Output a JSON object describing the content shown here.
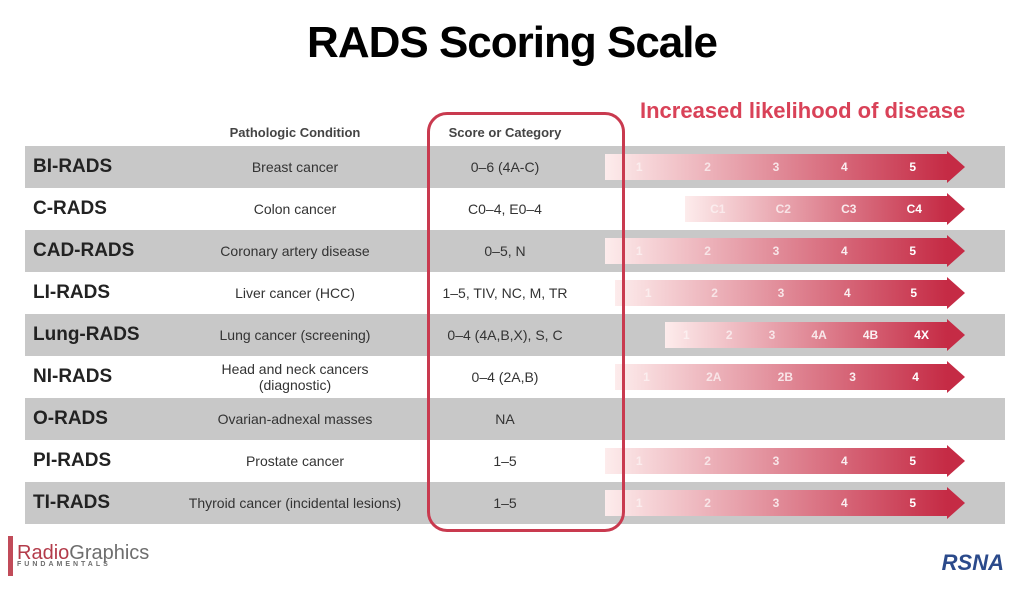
{
  "title": "RADS Scoring Scale",
  "increased_label": "Increased likelihood of disease",
  "headers": {
    "condition": "Pathologic Condition",
    "score": "Score or Category"
  },
  "gradient_light": "#fdecec",
  "gradient_dark": "#c52b45",
  "rows": [
    {
      "name": "BI-RADS",
      "condition": "Breast cancer",
      "score": "0–6 (4A-C)",
      "shaded": true,
      "arrow_start": 0,
      "ticks": [
        "1",
        "2",
        "3",
        "4",
        "5"
      ]
    },
    {
      "name": "C-RADS",
      "condition": "Colon cancer",
      "score": "C0–4, E0–4",
      "shaded": false,
      "arrow_start": 80,
      "ticks": [
        "C1",
        "C2",
        "C3",
        "C4"
      ]
    },
    {
      "name": "CAD-RADS",
      "condition": "Coronary artery disease",
      "score": "0–5, N",
      "shaded": true,
      "arrow_start": 0,
      "ticks": [
        "1",
        "2",
        "3",
        "4",
        "5"
      ]
    },
    {
      "name": "LI-RADS",
      "condition": "Liver cancer (HCC)",
      "score": "1–5, TIV, NC, M, TR",
      "shaded": false,
      "arrow_start": 10,
      "ticks": [
        "1",
        "2",
        "3",
        "4",
        "5"
      ]
    },
    {
      "name": "Lung-RADS",
      "condition": "Lung cancer (screening)",
      "score": "0–4 (4A,B,X), S, C",
      "shaded": true,
      "arrow_start": 60,
      "ticks": [
        "1",
        "2",
        "3",
        "4A",
        "4B",
        "4X"
      ]
    },
    {
      "name": "NI-RADS",
      "condition": "Head and neck cancers (diagnostic)",
      "score": "0–4 (2A,B)",
      "shaded": false,
      "arrow_start": 10,
      "ticks": [
        "1",
        "2A",
        "2B",
        "3",
        "4"
      ]
    },
    {
      "name": "O-RADS",
      "condition": "Ovarian-adnexal masses",
      "score": "NA",
      "shaded": true,
      "arrow_start": null,
      "ticks": []
    },
    {
      "name": "PI-RADS",
      "condition": "Prostate cancer",
      "score": "1–5",
      "shaded": false,
      "arrow_start": 0,
      "ticks": [
        "1",
        "2",
        "3",
        "4",
        "5"
      ]
    },
    {
      "name": "TI-RADS",
      "condition": "Thyroid cancer (incidental lesions)",
      "score": "1–5",
      "shaded": true,
      "arrow_start": 0,
      "ticks": [
        "1",
        "2",
        "3",
        "4",
        "5"
      ]
    }
  ],
  "footer_left": {
    "brand_a": "Radio",
    "brand_b": "Graphics",
    "sub": "FUNDAMENTALS"
  },
  "footer_right": "RSNA"
}
